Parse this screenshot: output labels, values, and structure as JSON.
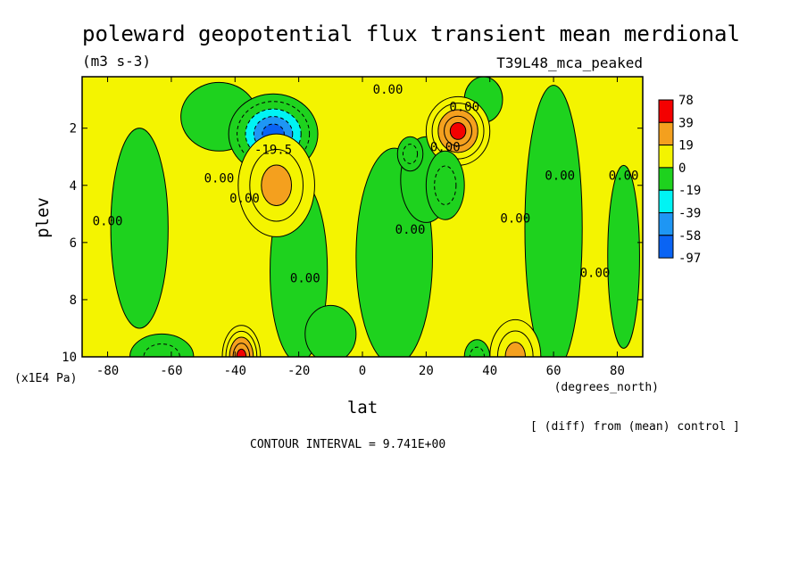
{
  "chart_data": {
    "type": "heatmap",
    "title": "poleward geopotential flux transient mean merdional",
    "units": "(m3 s-3)",
    "run_label": "T39L48_mca_peaked",
    "xlabel": "lat",
    "x_units": "(degrees_north)",
    "ylabel": "plev",
    "y_units": "(x1E4 Pa)",
    "xlim": [
      -88,
      88
    ],
    "ylim": [
      10,
      0.2
    ],
    "xticks": [
      -80,
      -60,
      -40,
      -20,
      0,
      20,
      40,
      60,
      80
    ],
    "xtick_labels": [
      "-80",
      "-60",
      "-40",
      "-20",
      "0",
      "20",
      "40",
      "60",
      "80"
    ],
    "yticks": [
      2,
      4,
      6,
      8,
      10
    ],
    "ytick_labels": [
      "2",
      "4",
      "6",
      "8",
      "10"
    ],
    "colorbar": {
      "labels": [
        "78",
        "39",
        "19",
        "0",
        "-19",
        "-39",
        "-58",
        "-97"
      ],
      "colors": [
        "#f40000",
        "#f4a01e",
        "#f4f400",
        "#1ed21e",
        "#00f4f4",
        "#1e96f4",
        "#0a64f4"
      ],
      "color_order": "high to low"
    },
    "contour_interval_text": "CONTOUR INTERVAL = 9.741E+00",
    "note": "[ (diff) from (mean) control ]",
    "contour_labels": [
      {
        "text": "0.00",
        "lat": 8,
        "plev": 0.8
      },
      {
        "text": "0.00",
        "lat": 32,
        "plev": 1.4
      },
      {
        "text": "-19.5",
        "lat": -28,
        "plev": 2.9
      },
      {
        "text": "0.00",
        "lat": -45,
        "plev": 3.9
      },
      {
        "text": "0.00",
        "lat": -37,
        "plev": 4.6
      },
      {
        "text": "0.00",
        "lat": -80,
        "plev": 5.4
      },
      {
        "text": "0.00",
        "lat": 15,
        "plev": 5.7
      },
      {
        "text": "0.00",
        "lat": 48,
        "plev": 5.3
      },
      {
        "text": "0.00",
        "lat": 62,
        "plev": 3.8
      },
      {
        "text": "0.00",
        "lat": 82,
        "plev": 3.8
      },
      {
        "text": "0.00",
        "lat": -18,
        "plev": 7.4
      },
      {
        "text": "0.00",
        "lat": 73,
        "plev": 7.2
      },
      {
        "text": "0.00",
        "lat": 26,
        "plev": 2.8
      }
    ],
    "features": [
      {
        "sign": "negative",
        "lat": -28,
        "plev": 2.2,
        "peak": -97,
        "extent_lat": 14,
        "extent_plev": 1.4
      },
      {
        "sign": "positive",
        "lat": -27,
        "plev": 4.0,
        "peak": 45,
        "extent_lat": 12,
        "extent_plev": 1.8
      },
      {
        "sign": "positive",
        "lat": 30,
        "plev": 2.1,
        "peak": 78,
        "extent_lat": 10,
        "extent_plev": 1.2
      },
      {
        "sign": "negative",
        "lat": 26,
        "plev": 4.0,
        "peak": -30,
        "extent_lat": 6,
        "extent_plev": 1.2
      },
      {
        "sign": "negative",
        "lat": 15,
        "plev": 2.9,
        "peak": -22,
        "extent_lat": 4,
        "extent_plev": 0.6
      },
      {
        "sign": "positive",
        "lat": -38,
        "plev": 10.0,
        "peak": 78,
        "extent_lat": 6,
        "extent_plev": 1.1
      },
      {
        "sign": "positive",
        "lat": 48,
        "plev": 10.0,
        "peak": 45,
        "extent_lat": 8,
        "extent_plev": 1.3
      },
      {
        "sign": "negative",
        "lat": -63,
        "plev": 10.0,
        "peak": -30,
        "extent_lat": 10,
        "extent_plev": 0.8
      },
      {
        "sign": "negative",
        "lat": 36,
        "plev": 10.0,
        "peak": -25,
        "extent_lat": 4,
        "extent_plev": 0.6
      }
    ]
  }
}
